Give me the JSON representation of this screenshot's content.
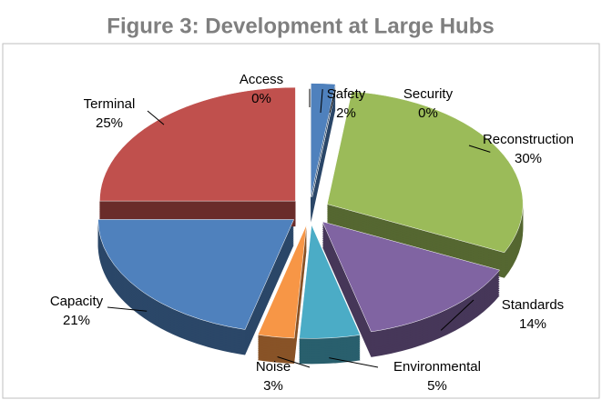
{
  "chart_data": {
    "type": "pie",
    "title": "Figure 3:  Development at Large Hubs",
    "categories": [
      "Safety",
      "Security",
      "Reconstruction",
      "Standards",
      "Environmental",
      "Noise",
      "Capacity",
      "Terminal",
      "Access"
    ],
    "values": [
      2,
      0,
      30,
      14,
      5,
      3,
      21,
      25,
      0
    ],
    "value_labels": [
      "2%",
      "0%",
      "30%",
      "14%",
      "5%",
      "3%",
      "21%",
      "25%",
      "0%"
    ],
    "colors": [
      "#4f81bd",
      "#c0504d",
      "#9bbb59",
      "#8064a2",
      "#4bacc6",
      "#f79646",
      "#4f81bd",
      "#c0504d",
      "#9bbb59"
    ]
  }
}
